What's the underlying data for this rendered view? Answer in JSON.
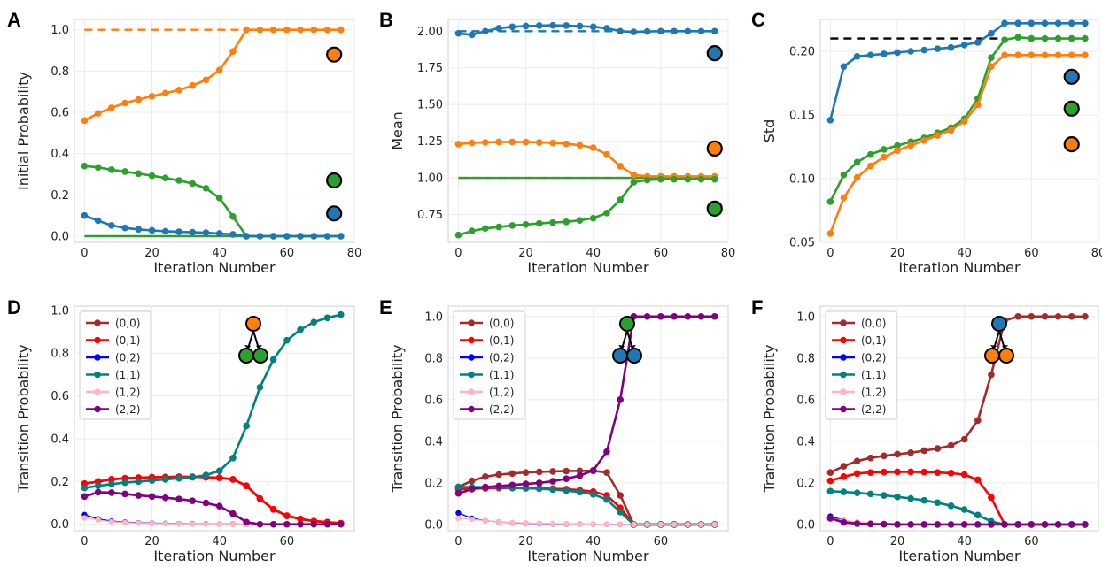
{
  "figure": {
    "panel_letters": [
      "A",
      "B",
      "C",
      "D",
      "E",
      "F"
    ]
  },
  "chart_data": [
    {
      "panel": "A",
      "type": "line",
      "xlabel": "Iteration Number",
      "ylabel": "Initial Probability",
      "xlim": [
        -3,
        80
      ],
      "ylim": [
        -0.03,
        1.05
      ],
      "xticks": [
        0,
        20,
        40,
        60,
        80
      ],
      "yticks": [
        0.0,
        0.2,
        0.4,
        0.6,
        0.8,
        1.0
      ],
      "ytick_labels": [
        "0.0",
        "0.2",
        "0.4",
        "0.6",
        "0.8",
        "1.0"
      ],
      "grid": true,
      "x": [
        0,
        4,
        8,
        12,
        16,
        20,
        24,
        28,
        32,
        36,
        40,
        44,
        48,
        52,
        56,
        60,
        64,
        68,
        72,
        76
      ],
      "series": [
        {
          "color": "#ff7f0e",
          "values": [
            0.56,
            0.595,
            0.622,
            0.645,
            0.662,
            0.678,
            0.693,
            0.708,
            0.73,
            0.757,
            0.805,
            0.895,
            1.0,
            1.0,
            1.0,
            1.0,
            1.0,
            1.0,
            1.0,
            1.0
          ]
        },
        {
          "color": "#2ca02c",
          "values": [
            0.34,
            0.333,
            0.322,
            0.313,
            0.303,
            0.293,
            0.282,
            0.27,
            0.255,
            0.232,
            0.185,
            0.095,
            0.0,
            0.0,
            0.0,
            0.0,
            0.0,
            0.0,
            0.0,
            0.0
          ]
        },
        {
          "color": "#1f77b4",
          "values": [
            0.1,
            0.075,
            0.052,
            0.04,
            0.033,
            0.028,
            0.024,
            0.021,
            0.019,
            0.017,
            0.013,
            0.009,
            0.0,
            0.0,
            0.0,
            0.0,
            0.0,
            0.0,
            0.0,
            0.0
          ]
        }
      ],
      "reference_lines": [
        {
          "color": "#ff7f0e",
          "y": 1.0,
          "style": "dashed"
        },
        {
          "color": "#2ca02c",
          "y": 0.0,
          "style": "solid"
        }
      ],
      "marker_circles": [
        {
          "color": "#ff7f0e",
          "x": 74,
          "y": 0.88
        },
        {
          "color": "#2ca02c",
          "x": 74,
          "y": 0.27
        },
        {
          "color": "#1f77b4",
          "x": 74,
          "y": 0.11
        }
      ]
    },
    {
      "panel": "B",
      "type": "line",
      "xlabel": "Iteration Number",
      "ylabel": "Mean",
      "xlim": [
        -3,
        80
      ],
      "ylim": [
        0.56,
        2.08
      ],
      "xticks": [
        0,
        20,
        40,
        60,
        80
      ],
      "yticks": [
        0.75,
        1.0,
        1.25,
        1.5,
        1.75,
        2.0
      ],
      "ytick_labels": [
        "0.75",
        "1.00",
        "1.25",
        "1.50",
        "1.75",
        "2.00"
      ],
      "grid": true,
      "x": [
        0,
        4,
        8,
        12,
        16,
        20,
        24,
        28,
        32,
        36,
        40,
        44,
        48,
        52,
        56,
        60,
        64,
        68,
        72,
        76
      ],
      "series": [
        {
          "color": "#1f77b4",
          "values": [
            1.985,
            1.975,
            2.0,
            2.02,
            2.03,
            2.035,
            2.038,
            2.04,
            2.038,
            2.035,
            2.03,
            2.02,
            2.0,
            1.995,
            1.998,
            2.0,
            2.0,
            2.0,
            2.0,
            2.0
          ]
        },
        {
          "color": "#ff7f0e",
          "values": [
            1.23,
            1.238,
            1.242,
            1.245,
            1.245,
            1.244,
            1.242,
            1.238,
            1.232,
            1.222,
            1.205,
            1.16,
            1.08,
            1.02,
            1.01,
            1.01,
            1.01,
            1.01,
            1.01,
            1.01
          ]
        },
        {
          "color": "#2ca02c",
          "values": [
            0.61,
            0.638,
            0.655,
            0.665,
            0.675,
            0.682,
            0.689,
            0.695,
            0.7,
            0.71,
            0.725,
            0.76,
            0.85,
            0.97,
            0.985,
            0.99,
            0.99,
            0.99,
            0.99,
            0.99
          ]
        }
      ],
      "reference_lines": [
        {
          "color": "#1f77b4",
          "y": 2.0,
          "style": "dashed",
          "x_from": 0,
          "x_to": 48
        },
        {
          "color": "#ff7f0e",
          "y": 1.0,
          "style": "dashed"
        },
        {
          "color": "#2ca02c",
          "y": 1.0,
          "style": "solid"
        }
      ],
      "marker_circles": [
        {
          "color": "#1f77b4",
          "x": 76,
          "y": 1.85
        },
        {
          "color": "#ff7f0e",
          "x": 76,
          "y": 1.2
        },
        {
          "color": "#2ca02c",
          "x": 76,
          "y": 0.79
        }
      ]
    },
    {
      "panel": "C",
      "type": "line",
      "xlabel": "Iteration Number",
      "ylabel": "Std",
      "xlim": [
        -3,
        80
      ],
      "ylim": [
        0.05,
        0.225
      ],
      "xticks": [
        0,
        20,
        40,
        60,
        80
      ],
      "yticks": [
        0.05,
        0.1,
        0.15,
        0.2
      ],
      "ytick_labels": [
        "0.05",
        "0.10",
        "0.15",
        "0.20"
      ],
      "grid": true,
      "x": [
        0,
        4,
        8,
        12,
        16,
        20,
        24,
        28,
        32,
        36,
        40,
        44,
        48,
        52,
        56,
        60,
        64,
        68,
        72,
        76
      ],
      "series": [
        {
          "color": "#1f77b4",
          "values": [
            0.146,
            0.188,
            0.196,
            0.197,
            0.198,
            0.199,
            0.2,
            0.201,
            0.202,
            0.203,
            0.205,
            0.207,
            0.214,
            0.222,
            0.222,
            0.222,
            0.222,
            0.222,
            0.222,
            0.222
          ]
        },
        {
          "color": "#2ca02c",
          "values": [
            0.082,
            0.103,
            0.113,
            0.119,
            0.123,
            0.126,
            0.129,
            0.132,
            0.136,
            0.14,
            0.147,
            0.163,
            0.195,
            0.209,
            0.211,
            0.21,
            0.21,
            0.21,
            0.21,
            0.21
          ]
        },
        {
          "color": "#ff7f0e",
          "values": [
            0.057,
            0.085,
            0.101,
            0.11,
            0.117,
            0.122,
            0.126,
            0.13,
            0.134,
            0.138,
            0.145,
            0.158,
            0.188,
            0.197,
            0.197,
            0.197,
            0.197,
            0.197,
            0.197,
            0.197
          ]
        }
      ],
      "reference_lines": [
        {
          "color": "#000000",
          "y": 0.21,
          "style": "dashed",
          "x_from": 0,
          "x_to": 52
        }
      ],
      "marker_circles": [
        {
          "color": "#1f77b4",
          "x": 72,
          "y": 0.18
        },
        {
          "color": "#2ca02c",
          "x": 72,
          "y": 0.155
        },
        {
          "color": "#ff7f0e",
          "x": 72,
          "y": 0.127
        }
      ]
    },
    {
      "panel": "D",
      "type": "line",
      "xlabel": "Iteration Number",
      "ylabel": "Transition Probability",
      "xlim": [
        -3,
        80
      ],
      "ylim": [
        -0.03,
        1.02
      ],
      "xticks": [
        0,
        20,
        40,
        60
      ],
      "yticks": [
        0.0,
        0.2,
        0.4,
        0.6,
        0.8,
        1.0
      ],
      "ytick_labels": [
        "0.0",
        "0.2",
        "0.4",
        "0.6",
        "0.8",
        "1.0"
      ],
      "grid": true,
      "legend_position": "upper-left",
      "x": [
        0,
        4,
        8,
        12,
        16,
        20,
        24,
        28,
        32,
        36,
        40,
        44,
        48,
        52,
        56,
        60,
        64,
        68,
        72,
        76
      ],
      "series": [
        {
          "name": "(0,0)",
          "color": "#a52a2a",
          "values": [
            0.19,
            0.2,
            0.21,
            0.215,
            0.218,
            0.22,
            0.221,
            0.222,
            0.222,
            0.22,
            0.218,
            0.21,
            0.18,
            0.12,
            0.07,
            0.04,
            0.025,
            0.015,
            0.01,
            0.005
          ]
        },
        {
          "name": "(0,1)",
          "color": "#ff0000",
          "values": [
            0.19,
            0.2,
            0.21,
            0.215,
            0.218,
            0.22,
            0.221,
            0.222,
            0.222,
            0.22,
            0.218,
            0.21,
            0.18,
            0.12,
            0.07,
            0.04,
            0.025,
            0.015,
            0.01,
            0.005
          ]
        },
        {
          "name": "(0,2)",
          "color": "#0000ff",
          "values": [
            0.045,
            0.025,
            0.015,
            0.01,
            0.007,
            0.005,
            0.004,
            0.003,
            0.002,
            0.002,
            0.001,
            0.001,
            0.0,
            0.0,
            0.0,
            0.0,
            0.0,
            0.0,
            0.0,
            0.0
          ]
        },
        {
          "name": "(1,1)",
          "color": "#008080",
          "values": [
            0.17,
            0.18,
            0.188,
            0.195,
            0.2,
            0.205,
            0.21,
            0.215,
            0.22,
            0.23,
            0.25,
            0.31,
            0.46,
            0.64,
            0.77,
            0.86,
            0.91,
            0.945,
            0.965,
            0.98
          ]
        },
        {
          "name": "(1,2)",
          "color": "#ffb6c1",
          "values": [
            0.03,
            0.02,
            0.012,
            0.008,
            0.006,
            0.004,
            0.003,
            0.002,
            0.001,
            0.001,
            0.001,
            0.0,
            0.0,
            0.0,
            0.0,
            0.0,
            0.0,
            0.0,
            0.0,
            0.0
          ]
        },
        {
          "name": "(2,2)",
          "color": "#800080",
          "values": [
            0.13,
            0.15,
            0.148,
            0.142,
            0.135,
            0.13,
            0.124,
            0.118,
            0.11,
            0.1,
            0.085,
            0.05,
            0.01,
            0.0,
            0.0,
            0.0,
            0.0,
            0.0,
            0.0,
            0.0
          ]
        }
      ],
      "tree_glyph": {
        "root": "#ff7f0e",
        "children": [
          "#2ca02c",
          "#2ca02c"
        ]
      }
    },
    {
      "panel": "E",
      "type": "line",
      "xlabel": "Iteration Number",
      "ylabel": "Transition Probability",
      "xlim": [
        -3,
        80
      ],
      "ylim": [
        -0.03,
        1.05
      ],
      "xticks": [
        0,
        20,
        40,
        60
      ],
      "yticks": [
        0.0,
        0.2,
        0.4,
        0.6,
        0.8,
        1.0
      ],
      "ytick_labels": [
        "0.0",
        "0.2",
        "0.4",
        "0.6",
        "0.8",
        "1.0"
      ],
      "grid": true,
      "legend_position": "upper-left",
      "x": [
        0,
        4,
        8,
        12,
        16,
        20,
        24,
        28,
        32,
        36,
        40,
        44,
        48,
        52,
        56,
        60,
        64,
        68,
        72,
        76
      ],
      "series": [
        {
          "name": "(0,0)",
          "color": "#a52a2a",
          "values": [
            0.18,
            0.21,
            0.23,
            0.24,
            0.245,
            0.25,
            0.253,
            0.255,
            0.257,
            0.258,
            0.258,
            0.25,
            0.14,
            0.0,
            0.0,
            0.0,
            0.0,
            0.0,
            0.0,
            0.0
          ]
        },
        {
          "name": "(0,1)",
          "color": "#ff0000",
          "values": [
            0.17,
            0.172,
            0.174,
            0.175,
            0.175,
            0.175,
            0.174,
            0.172,
            0.17,
            0.165,
            0.158,
            0.14,
            0.08,
            0.0,
            0.0,
            0.0,
            0.0,
            0.0,
            0.0,
            0.0
          ]
        },
        {
          "name": "(0,2)",
          "color": "#0000ff",
          "values": [
            0.055,
            0.03,
            0.018,
            0.012,
            0.008,
            0.006,
            0.004,
            0.003,
            0.002,
            0.002,
            0.001,
            0.001,
            0.0,
            0.0,
            0.0,
            0.0,
            0.0,
            0.0,
            0.0,
            0.0
          ]
        },
        {
          "name": "(1,1)",
          "color": "#008080",
          "values": [
            0.18,
            0.18,
            0.179,
            0.178,
            0.176,
            0.174,
            0.172,
            0.168,
            0.163,
            0.156,
            0.145,
            0.12,
            0.06,
            0.0,
            0.0,
            0.0,
            0.0,
            0.0,
            0.0,
            0.0
          ]
        },
        {
          "name": "(1,2)",
          "color": "#ffb6c1",
          "values": [
            0.03,
            0.025,
            0.018,
            0.012,
            0.009,
            0.007,
            0.005,
            0.004,
            0.003,
            0.002,
            0.001,
            0.001,
            0.0,
            0.0,
            0.0,
            0.0,
            0.0,
            0.0,
            0.0,
            0.0
          ]
        },
        {
          "name": "(2,2)",
          "color": "#800080",
          "values": [
            0.15,
            0.17,
            0.18,
            0.185,
            0.19,
            0.195,
            0.2,
            0.208,
            0.22,
            0.235,
            0.26,
            0.35,
            0.6,
            1.0,
            1.0,
            1.0,
            1.0,
            1.0,
            1.0,
            1.0
          ]
        }
      ],
      "tree_glyph": {
        "root": "#2ca02c",
        "children": [
          "#1f77b4",
          "#1f77b4"
        ]
      }
    },
    {
      "panel": "F",
      "type": "line",
      "xlabel": "Iteration Number",
      "ylabel": "Transition Probability",
      "xlim": [
        -3,
        80
      ],
      "ylim": [
        -0.03,
        1.05
      ],
      "xticks": [
        0,
        20,
        40,
        60
      ],
      "yticks": [
        0.0,
        0.2,
        0.4,
        0.6,
        0.8,
        1.0
      ],
      "ytick_labels": [
        "0.0",
        "0.2",
        "0.4",
        "0.6",
        "0.8",
        "1.0"
      ],
      "grid": true,
      "legend_position": "upper-left",
      "x": [
        0,
        4,
        8,
        12,
        16,
        20,
        24,
        28,
        32,
        36,
        40,
        44,
        48,
        52,
        56,
        60,
        64,
        68,
        72,
        76
      ],
      "series": [
        {
          "name": "(0,0)",
          "color": "#a52a2a",
          "values": [
            0.25,
            0.28,
            0.305,
            0.32,
            0.33,
            0.338,
            0.345,
            0.355,
            0.365,
            0.38,
            0.41,
            0.5,
            0.72,
            0.98,
            1.0,
            1.0,
            1.0,
            1.0,
            1.0,
            1.0
          ]
        },
        {
          "name": "(0,1)",
          "color": "#ff0000",
          "values": [
            0.21,
            0.23,
            0.245,
            0.25,
            0.252,
            0.253,
            0.253,
            0.252,
            0.25,
            0.247,
            0.24,
            0.215,
            0.13,
            0.0,
            0.0,
            0.0,
            0.0,
            0.0,
            0.0,
            0.0
          ]
        },
        {
          "name": "(0,2)",
          "color": "#0000ff",
          "values": [
            0.04,
            0.02,
            0.01,
            0.006,
            0.004,
            0.003,
            0.002,
            0.001,
            0.001,
            0.0,
            0.0,
            0.0,
            0.0,
            0.0,
            0.0,
            0.0,
            0.0,
            0.0,
            0.0,
            0.0
          ]
        },
        {
          "name": "(1,1)",
          "color": "#008080",
          "values": [
            0.16,
            0.157,
            0.152,
            0.147,
            0.14,
            0.133,
            0.125,
            0.116,
            0.105,
            0.09,
            0.072,
            0.045,
            0.015,
            0.0,
            0.0,
            0.0,
            0.0,
            0.0,
            0.0,
            0.0
          ]
        },
        {
          "name": "(1,2)",
          "color": "#ffb6c1",
          "values": [
            0.03,
            0.02,
            0.012,
            0.008,
            0.005,
            0.004,
            0.003,
            0.002,
            0.001,
            0.001,
            0.0,
            0.0,
            0.0,
            0.0,
            0.0,
            0.0,
            0.0,
            0.0,
            0.0,
            0.0
          ]
        },
        {
          "name": "(2,2)",
          "color": "#800080",
          "values": [
            0.03,
            0.01,
            0.004,
            0.002,
            0.001,
            0.0,
            0.0,
            0.0,
            0.0,
            0.0,
            0.0,
            0.0,
            0.0,
            0.0,
            0.0,
            0.0,
            0.0,
            0.0,
            0.0,
            0.0
          ]
        }
      ],
      "tree_glyph": {
        "root": "#1f77b4",
        "children": [
          "#ff7f0e",
          "#ff7f0e"
        ]
      }
    }
  ]
}
